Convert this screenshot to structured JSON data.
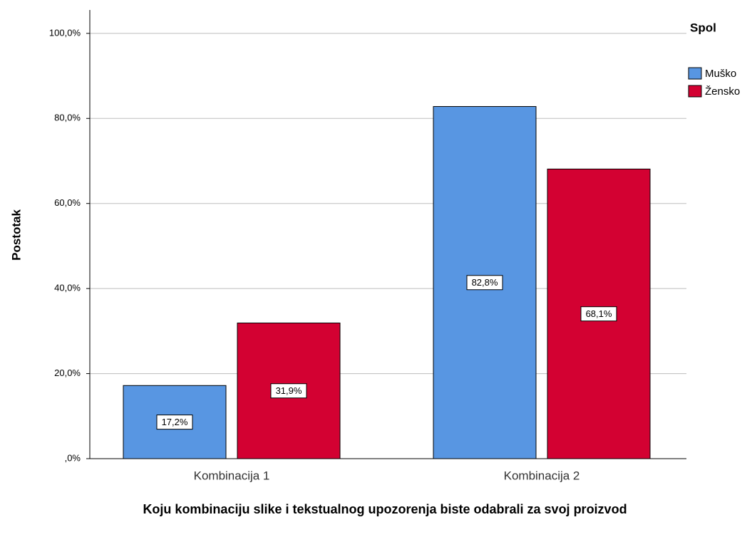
{
  "chart_data": {
    "type": "bar",
    "x_label": "Koju kombinaciju slike i tekstualnog upozorenja biste odabrali za svoj proizvod",
    "y_label": "Postotak",
    "legend_title": "Spol",
    "legend_position": "right",
    "categories": [
      "Kombinacija 1",
      "Kombinacija 2"
    ],
    "series": [
      {
        "name": "Muško",
        "color": "#5896e2",
        "values": [
          17.2,
          82.8
        ],
        "value_labels": [
          "17,2%",
          "82,8%"
        ]
      },
      {
        "name": "Žensko",
        "color": "#d30132",
        "values": [
          31.9,
          68.1
        ],
        "value_labels": [
          "31,9%",
          "68,1%"
        ]
      }
    ],
    "ylim": [
      0,
      105.5
    ],
    "yticks": [
      {
        "value": 0,
        "label": ",0%"
      },
      {
        "value": 20,
        "label": "20,0%"
      },
      {
        "value": 40,
        "label": "40,0%"
      },
      {
        "value": 60,
        "label": "60,0%"
      },
      {
        "value": 80,
        "label": "80,0%"
      },
      {
        "value": 100,
        "label": "100,0%"
      }
    ],
    "grid": true
  }
}
